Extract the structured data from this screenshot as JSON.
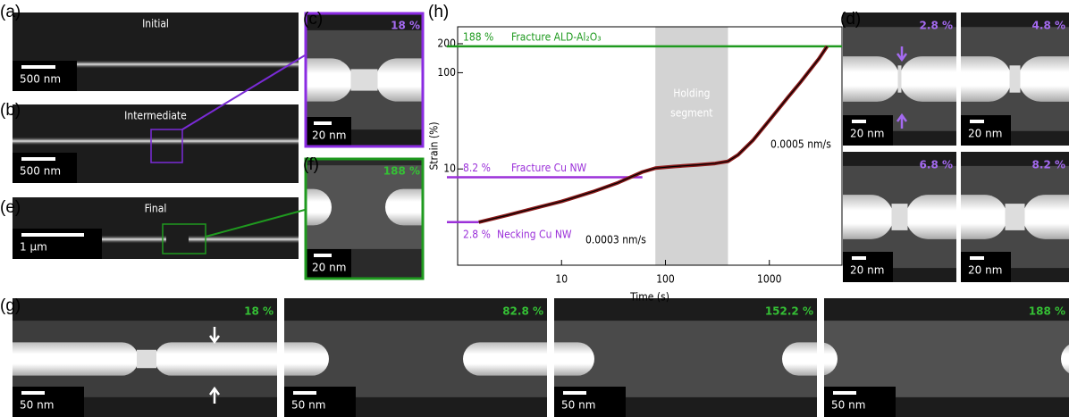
{
  "panels": [
    {
      "label": "(a)",
      "title": "Initial",
      "scale_bar": "500 nm"
    },
    {
      "label": "(b)",
      "title": "Intermediate",
      "scale_bar": "500 nm"
    },
    {
      "label": "(e)",
      "title": "Final",
      "scale_bar": "1 µm"
    },
    {
      "label": "(c)",
      "strain": "18 %",
      "scale_bar": "20 nm"
    },
    {
      "label": "(f)",
      "strain": "188 %",
      "scale_bar": "20 nm"
    },
    {
      "label": "(d)",
      "images": [
        {
          "strain": "2.8 %",
          "scale_bar": "20 nm"
        },
        {
          "strain": "4.8 %",
          "scale_bar": "20 nm"
        },
        {
          "strain": "6.8 %",
          "scale_bar": "20 nm"
        },
        {
          "strain": "8.2 %",
          "scale_bar": "20 nm"
        }
      ]
    },
    {
      "label": "(g)",
      "images": [
        {
          "strain": "18 %",
          "scale_bar": "50 nm"
        },
        {
          "strain": "82.8 %",
          "scale_bar": "50 nm"
        },
        {
          "strain": "152.2 %",
          "scale_bar": "50 nm"
        },
        {
          "strain": "188 %",
          "scale_bar": "50 nm"
        }
      ]
    }
  ],
  "chart_label": "(h)",
  "chart_data": {
    "type": "line",
    "xlabel": "Time (s)",
    "ylabel": "Strain (%)",
    "log_x": true,
    "log_y": true,
    "xlim": [
      1,
      5000
    ],
    "ylim": [
      1,
      300
    ],
    "xticks": [
      10,
      100,
      1000
    ],
    "yticks": [
      10,
      100,
      200
    ],
    "x": [
      1.6,
      3,
      6,
      10,
      20,
      35,
      60,
      80,
      120,
      200,
      300,
      400,
      500,
      700,
      1000,
      1500,
      2000,
      3000,
      3600
    ],
    "series": [
      {
        "color": "#8b1a1a",
        "values": [
          2.8,
          3.3,
          4.0,
          4.6,
          5.8,
          7.2,
          9.3,
          10.2,
          10.6,
          11,
          11.4,
          12,
          14,
          20,
          32,
          55,
          80,
          140,
          188
        ]
      }
    ],
    "reference_lines": [
      {
        "value": 188,
        "label": "188 %",
        "text": "Fracture ALD-Al₂O₃",
        "color": "#1f9a1f"
      },
      {
        "value": 8.2,
        "label": "8.2 %",
        "text": "Fracture Cu NW",
        "color": "#9b30d9"
      },
      {
        "value": 2.8,
        "label": "2.8 %",
        "text": "Necking Cu NW",
        "color": "#9b30d9"
      }
    ],
    "holding_segment": {
      "xlim": [
        80,
        400
      ],
      "label": [
        "Holding",
        "segment"
      ],
      "color": "#d3d3d3"
    },
    "rates": [
      "0.0003 nm/s",
      "0.0005 nm/s"
    ]
  }
}
